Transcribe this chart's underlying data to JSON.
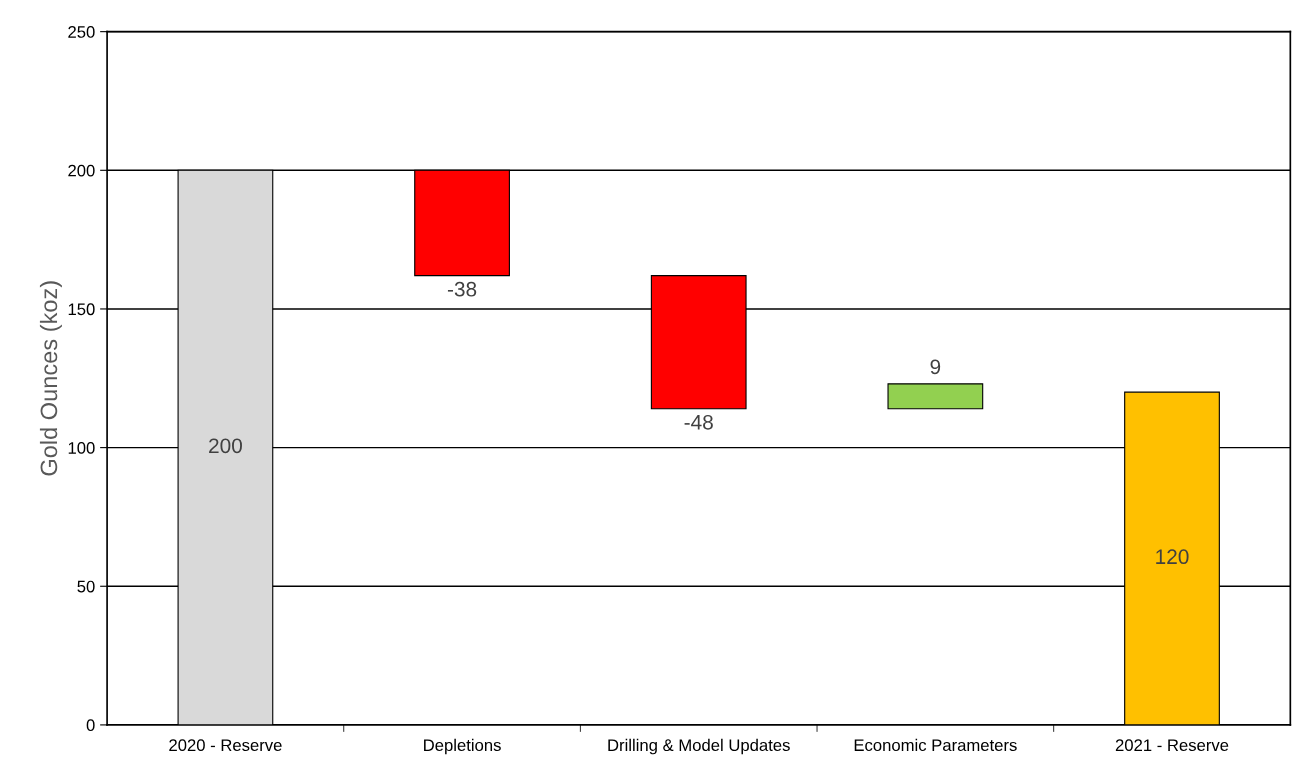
{
  "chart_data": {
    "type": "bar",
    "ylabel": "Gold Ounces (koz)",
    "categories": [
      "2020 - Reserve",
      "Depletions",
      "Drilling & Model Updates",
      "Economic Parameters",
      "2021 - Reserve"
    ],
    "values": [
      200,
      -38,
      -48,
      9,
      120
    ],
    "base": [
      0,
      200,
      162,
      114,
      0
    ],
    "colors": [
      "#d9d9d9",
      "#ff0000",
      "#ff0000",
      "#92d050",
      "#ffc000"
    ],
    "ylim": [
      0,
      250
    ],
    "yticks": [
      0,
      50,
      100,
      150,
      200,
      250
    ],
    "grid": "y",
    "data_labels": true,
    "legend": false
  }
}
